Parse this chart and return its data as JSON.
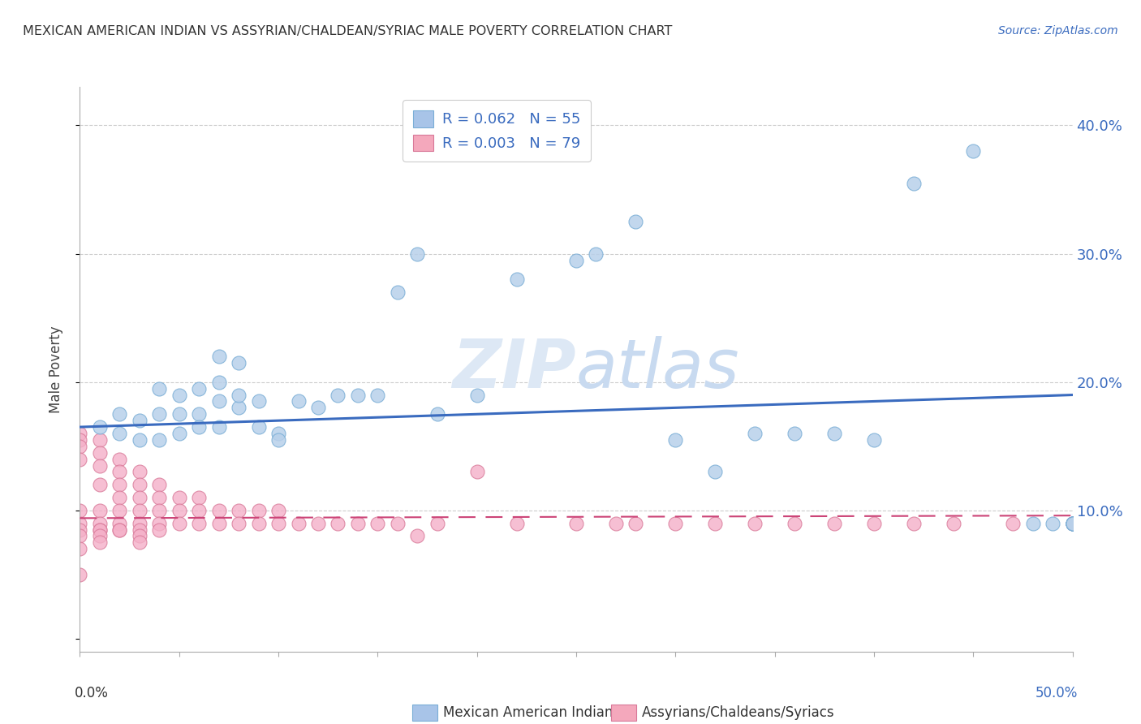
{
  "title": "MEXICAN AMERICAN INDIAN VS ASSYRIAN/CHALDEAN/SYRIAC MALE POVERTY CORRELATION CHART",
  "source": "Source: ZipAtlas.com",
  "ylabel": "Male Poverty",
  "yticks": [
    0.0,
    0.1,
    0.2,
    0.3,
    0.4
  ],
  "ytick_labels": [
    "",
    "10.0%",
    "20.0%",
    "30.0%",
    "40.0%"
  ],
  "xlim": [
    0.0,
    0.5
  ],
  "ylim": [
    -0.01,
    0.43
  ],
  "legend_color1": "#a8c4e8",
  "legend_color2": "#f4a8bc",
  "scatter1_color": "#b8d0ea",
  "scatter1_edgecolor": "#7aaed6",
  "scatter2_color": "#f4b0c8",
  "scatter2_edgecolor": "#d87898",
  "line1_color": "#3a6bbf",
  "line2_color": "#cc4477",
  "watermark_zip": "ZIP",
  "watermark_atlas": "atlas",
  "watermark_color": "#dde8f5",
  "blue_x": [
    0.01,
    0.02,
    0.02,
    0.03,
    0.03,
    0.04,
    0.04,
    0.04,
    0.05,
    0.05,
    0.05,
    0.06,
    0.06,
    0.06,
    0.07,
    0.07,
    0.07,
    0.07,
    0.08,
    0.08,
    0.08,
    0.09,
    0.09,
    0.1,
    0.1,
    0.11,
    0.12,
    0.13,
    0.14,
    0.15,
    0.16,
    0.17,
    0.18,
    0.2,
    0.22,
    0.25,
    0.26,
    0.28,
    0.3,
    0.32,
    0.34,
    0.36,
    0.38,
    0.4,
    0.42,
    0.45,
    0.48,
    0.49,
    0.5,
    0.5,
    0.5,
    0.5,
    0.5,
    0.5,
    0.5
  ],
  "blue_y": [
    0.165,
    0.16,
    0.175,
    0.155,
    0.17,
    0.155,
    0.175,
    0.195,
    0.16,
    0.175,
    0.19,
    0.195,
    0.175,
    0.165,
    0.165,
    0.185,
    0.2,
    0.22,
    0.18,
    0.19,
    0.215,
    0.185,
    0.165,
    0.16,
    0.155,
    0.185,
    0.18,
    0.19,
    0.19,
    0.19,
    0.27,
    0.3,
    0.175,
    0.19,
    0.28,
    0.295,
    0.3,
    0.325,
    0.155,
    0.13,
    0.16,
    0.16,
    0.16,
    0.155,
    0.355,
    0.38,
    0.09,
    0.09,
    0.09,
    0.09,
    0.09,
    0.09,
    0.09,
    0.09,
    0.09
  ],
  "pink_x": [
    0.0,
    0.0,
    0.0,
    0.0,
    0.0,
    0.0,
    0.0,
    0.0,
    0.0,
    0.0,
    0.01,
    0.01,
    0.01,
    0.01,
    0.01,
    0.01,
    0.01,
    0.01,
    0.01,
    0.01,
    0.02,
    0.02,
    0.02,
    0.02,
    0.02,
    0.02,
    0.02,
    0.02,
    0.03,
    0.03,
    0.03,
    0.03,
    0.03,
    0.03,
    0.03,
    0.03,
    0.04,
    0.04,
    0.04,
    0.04,
    0.04,
    0.05,
    0.05,
    0.05,
    0.06,
    0.06,
    0.06,
    0.07,
    0.07,
    0.08,
    0.08,
    0.09,
    0.09,
    0.1,
    0.1,
    0.11,
    0.12,
    0.13,
    0.14,
    0.15,
    0.16,
    0.17,
    0.18,
    0.2,
    0.22,
    0.25,
    0.27,
    0.28,
    0.3,
    0.32,
    0.34,
    0.36,
    0.38,
    0.4,
    0.42,
    0.44,
    0.47,
    0.5,
    0.5
  ],
  "pink_y": [
    0.16,
    0.155,
    0.15,
    0.14,
    0.1,
    0.09,
    0.085,
    0.08,
    0.07,
    0.05,
    0.155,
    0.145,
    0.135,
    0.12,
    0.1,
    0.09,
    0.085,
    0.085,
    0.08,
    0.075,
    0.14,
    0.13,
    0.12,
    0.11,
    0.1,
    0.09,
    0.085,
    0.085,
    0.13,
    0.12,
    0.11,
    0.1,
    0.09,
    0.085,
    0.08,
    0.075,
    0.12,
    0.11,
    0.1,
    0.09,
    0.085,
    0.11,
    0.1,
    0.09,
    0.11,
    0.1,
    0.09,
    0.1,
    0.09,
    0.1,
    0.09,
    0.1,
    0.09,
    0.1,
    0.09,
    0.09,
    0.09,
    0.09,
    0.09,
    0.09,
    0.09,
    0.08,
    0.09,
    0.13,
    0.09,
    0.09,
    0.09,
    0.09,
    0.09,
    0.09,
    0.09,
    0.09,
    0.09,
    0.09,
    0.09,
    0.09,
    0.09,
    0.09,
    0.09
  ],
  "blue_line_x0": 0.0,
  "blue_line_y0": 0.165,
  "blue_line_x1": 0.5,
  "blue_line_y1": 0.19,
  "pink_line_x0": 0.0,
  "pink_line_y0": 0.094,
  "pink_line_x1": 0.5,
  "pink_line_y1": 0.096
}
